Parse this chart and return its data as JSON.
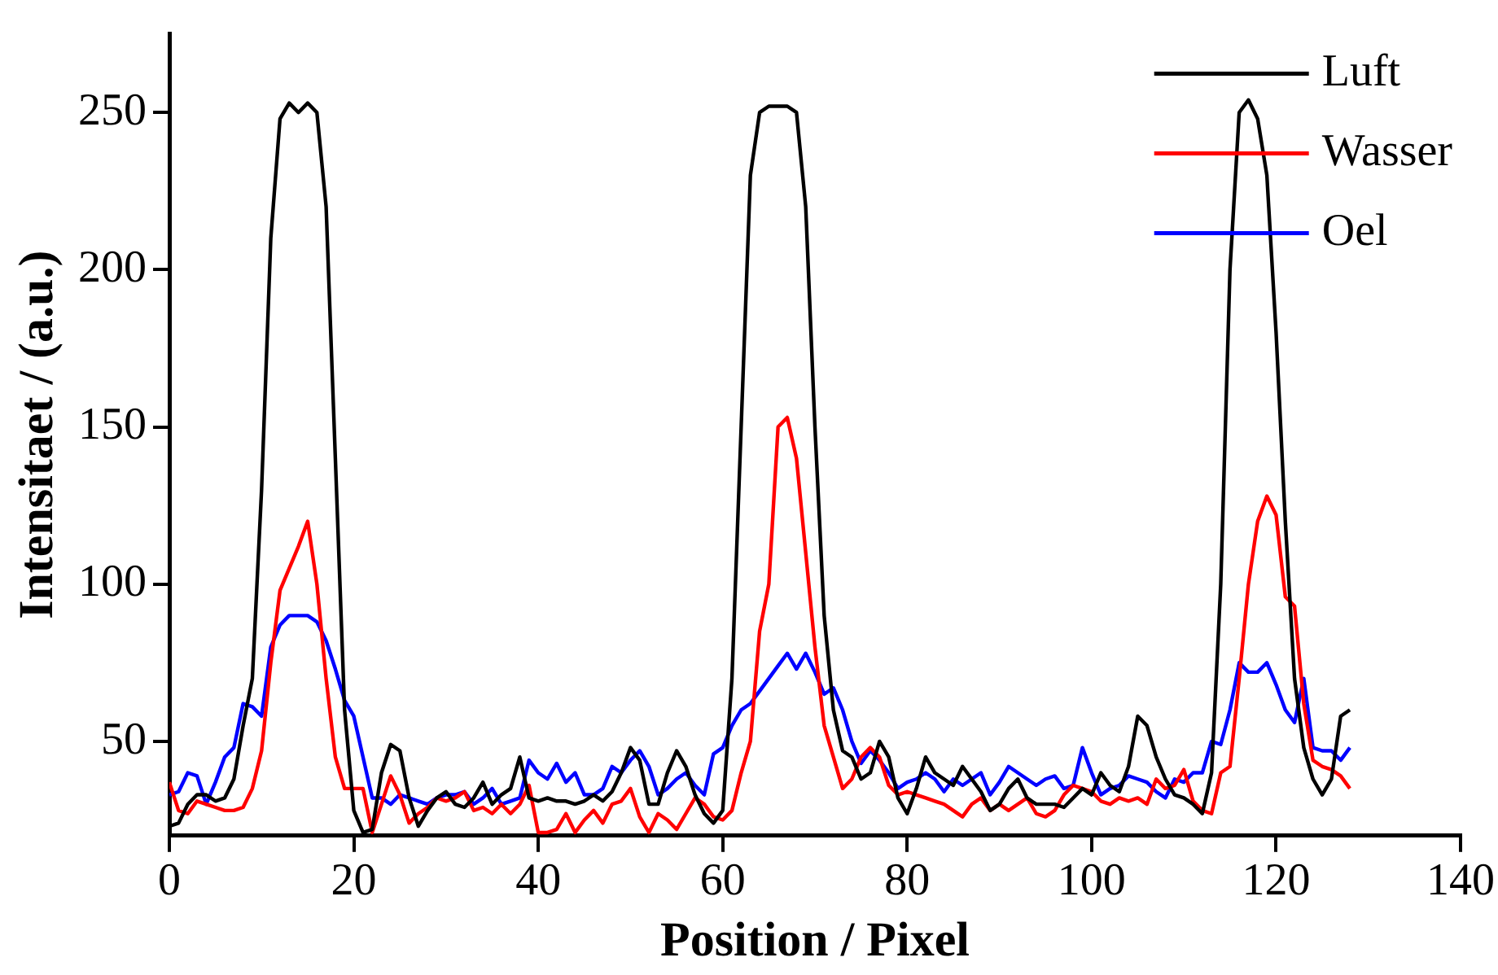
{
  "chart_data": {
    "type": "line",
    "xlabel": "Position / Pixel",
    "ylabel": "Intensitaet / (a.u.)",
    "x": [
      0,
      1,
      2,
      3,
      4,
      5,
      6,
      7,
      8,
      9,
      10,
      11,
      12,
      13,
      14,
      15,
      16,
      17,
      18,
      19,
      20,
      21,
      22,
      23,
      24,
      25,
      26,
      27,
      28,
      29,
      30,
      31,
      32,
      33,
      34,
      35,
      36,
      37,
      38,
      39,
      40,
      41,
      42,
      43,
      44,
      45,
      46,
      47,
      48,
      49,
      50,
      51,
      52,
      53,
      54,
      55,
      56,
      57,
      58,
      59,
      60,
      61,
      62,
      63,
      64,
      65,
      66,
      67,
      68,
      69,
      70,
      71,
      72,
      73,
      74,
      75,
      76,
      77,
      78,
      79,
      80,
      81,
      82,
      83,
      84,
      85,
      86,
      87,
      88,
      89,
      90,
      91,
      92,
      93,
      94,
      95,
      96,
      97,
      98,
      99,
      100,
      101,
      102,
      103,
      104,
      105,
      106,
      107,
      108,
      109,
      110,
      111,
      112,
      113,
      114,
      115,
      116,
      117,
      118,
      119,
      120,
      121,
      122,
      123,
      124,
      125,
      126,
      127,
      128
    ],
    "series": [
      {
        "name": "Luft",
        "color": "#000000",
        "values": [
          23,
          24,
          30,
          33,
          33,
          31,
          32,
          38,
          55,
          70,
          130,
          210,
          248,
          253,
          250,
          253,
          250,
          220,
          140,
          60,
          28,
          21,
          22,
          40,
          49,
          47,
          32,
          23,
          28,
          32,
          34,
          30,
          29,
          32,
          37,
          30,
          33,
          35,
          45,
          32,
          31,
          32,
          31,
          31,
          30,
          31,
          33,
          31,
          34,
          40,
          48,
          44,
          30,
          30,
          40,
          47,
          42,
          33,
          27,
          24,
          28,
          70,
          150,
          230,
          250,
          252,
          252,
          252,
          250,
          220,
          150,
          90,
          60,
          47,
          45,
          38,
          40,
          50,
          45,
          32,
          27,
          35,
          45,
          40,
          38,
          36,
          42,
          38,
          34,
          28,
          30,
          35,
          38,
          32,
          30,
          30,
          30,
          29,
          32,
          35,
          33,
          40,
          36,
          34,
          42,
          58,
          55,
          45,
          38,
          33,
          32,
          30,
          27,
          40,
          100,
          200,
          250,
          254,
          248,
          230,
          180,
          120,
          70,
          48,
          38,
          33,
          38,
          58,
          60
        ]
      },
      {
        "name": "Wasser",
        "color": "#ff0000",
        "values": [
          37,
          28,
          27,
          31,
          30,
          29,
          28,
          28,
          29,
          35,
          47,
          75,
          98,
          105,
          112,
          120,
          100,
          70,
          45,
          35,
          35,
          35,
          21,
          30,
          39,
          33,
          24,
          27,
          29,
          32,
          31,
          32,
          34,
          28,
          29,
          27,
          30,
          27,
          30,
          36,
          21,
          21,
          22,
          27,
          21,
          25,
          28,
          24,
          30,
          31,
          35,
          26,
          21,
          27,
          25,
          22,
          27,
          32,
          30,
          26,
          25,
          28,
          40,
          50,
          85,
          100,
          150,
          153,
          140,
          110,
          80,
          55,
          45,
          35,
          38,
          45,
          48,
          45,
          36,
          33,
          34,
          33,
          32,
          31,
          30,
          28,
          26,
          30,
          32,
          28,
          30,
          28,
          30,
          32,
          27,
          26,
          28,
          33,
          36,
          35,
          34,
          31,
          30,
          32,
          31,
          32,
          30,
          38,
          35,
          36,
          41,
          31,
          28,
          27,
          40,
          42,
          70,
          100,
          120,
          128,
          122,
          96,
          93,
          62,
          44,
          42,
          41,
          39,
          35
        ]
      },
      {
        "name": "Oel",
        "color": "#0000ff",
        "values": [
          33,
          34,
          40,
          39,
          30,
          37,
          45,
          48,
          62,
          61,
          58,
          80,
          87,
          90,
          90,
          90,
          88,
          82,
          73,
          63,
          58,
          45,
          32,
          32,
          30,
          33,
          32,
          31,
          30,
          32,
          33,
          33,
          34,
          30,
          32,
          35,
          30,
          31,
          32,
          44,
          40,
          38,
          43,
          37,
          40,
          33,
          33,
          35,
          42,
          40,
          44,
          47,
          42,
          33,
          35,
          38,
          40,
          36,
          33,
          46,
          48,
          55,
          60,
          62,
          66,
          70,
          74,
          78,
          73,
          78,
          72,
          65,
          67,
          60,
          50,
          43,
          47,
          44,
          40,
          35,
          37,
          38,
          40,
          38,
          34,
          38,
          36,
          38,
          40,
          33,
          37,
          42,
          40,
          38,
          36,
          38,
          39,
          35,
          36,
          48,
          40,
          33,
          35,
          36,
          39,
          38,
          37,
          34,
          32,
          38,
          37,
          40,
          40,
          50,
          49,
          60,
          75,
          72,
          72,
          75,
          68,
          60,
          56,
          70,
          48,
          47,
          47,
          44,
          48
        ]
      }
    ],
    "xlim": [
      0,
      140
    ],
    "xticks": [
      0,
      20,
      40,
      60,
      80,
      100,
      120,
      140
    ],
    "ylim": [
      20,
      275
    ],
    "yticks": [
      50,
      100,
      150,
      200,
      250
    ],
    "grid": false,
    "legend": "top right"
  }
}
